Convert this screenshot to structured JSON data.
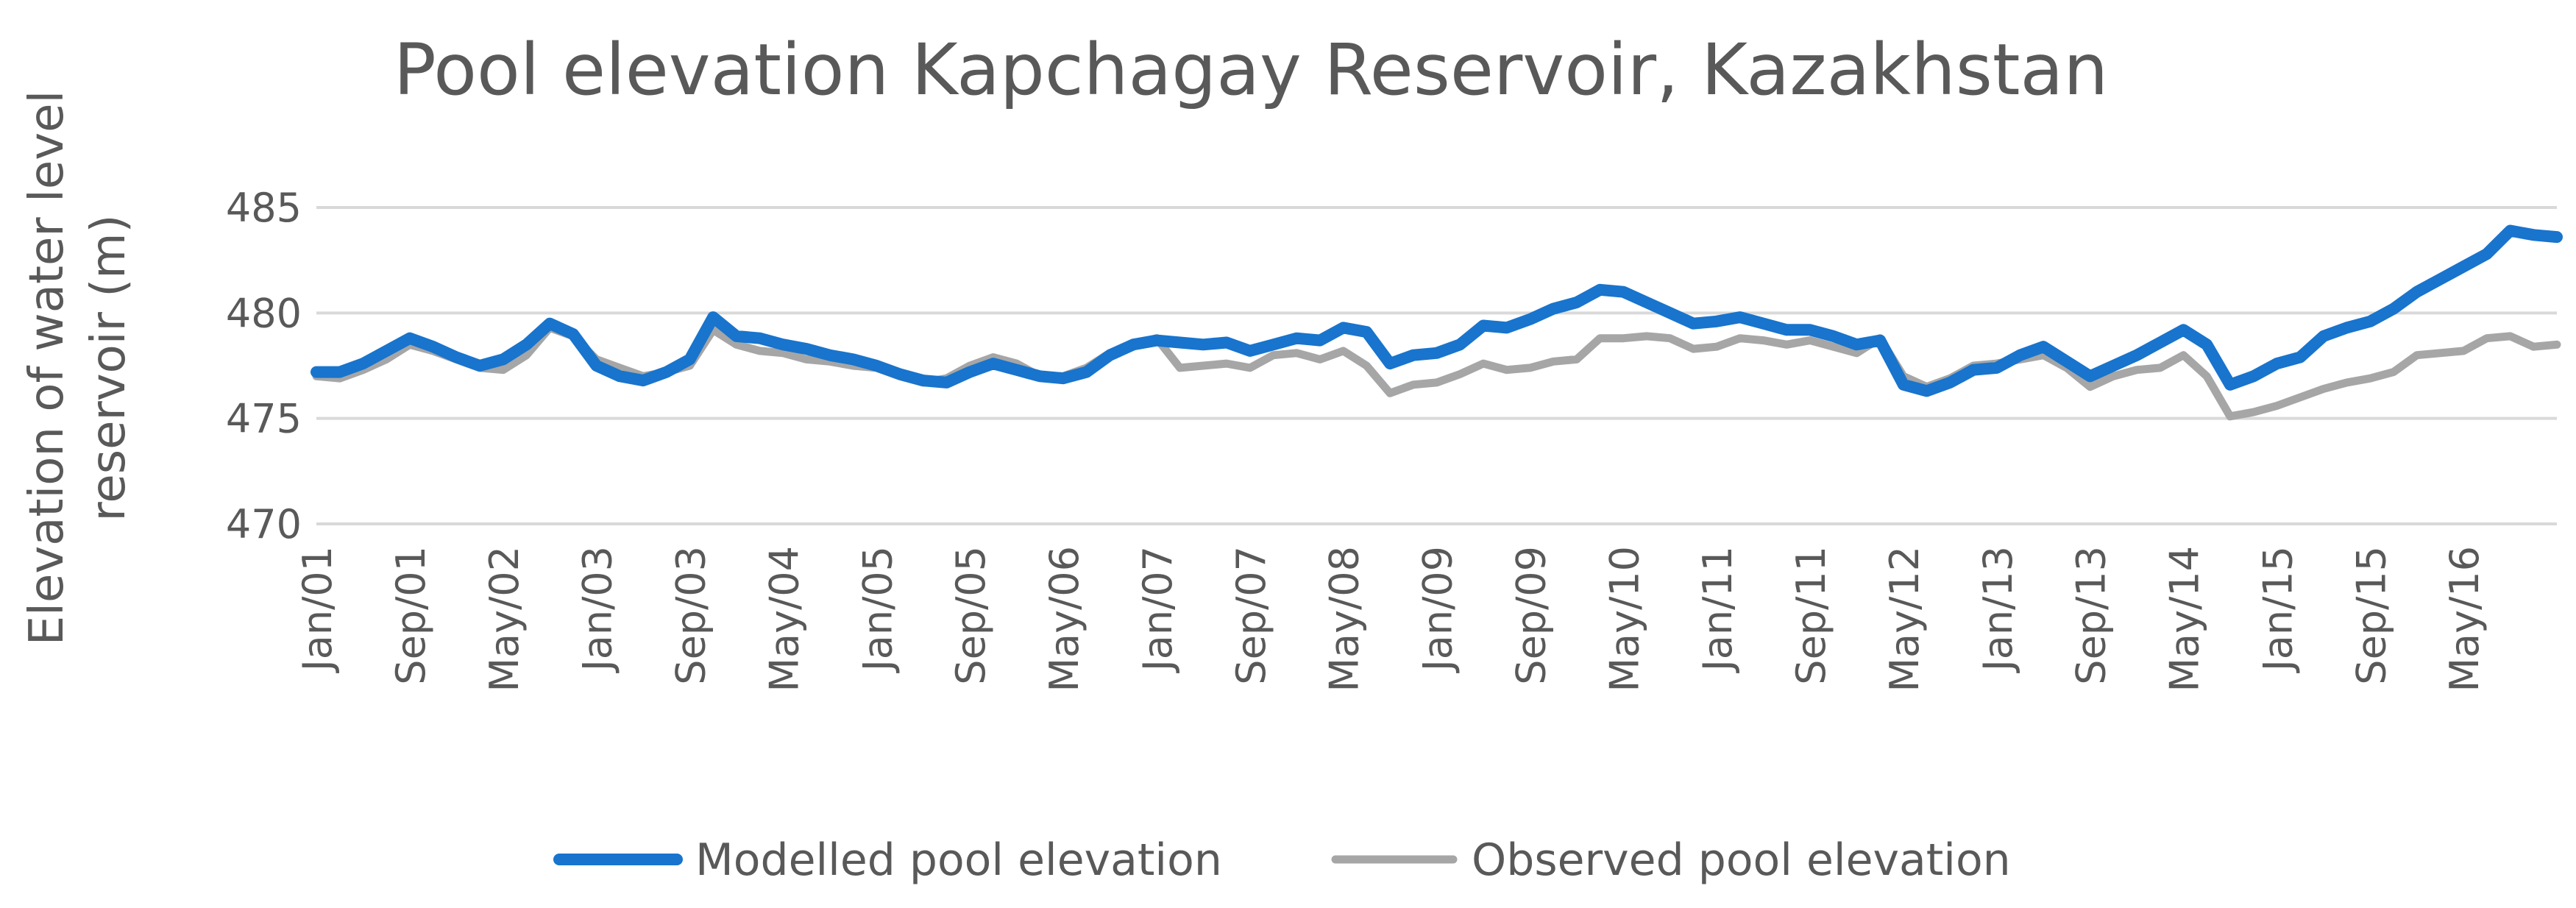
{
  "chart_data": {
    "type": "line",
    "title": "Pool elevation Kapchagay Reservoir, Kazakhstan",
    "ylabel_lines": [
      "Elevation of water level",
      "reservoir (m)"
    ],
    "xlabel": "",
    "ylim": [
      470,
      485
    ],
    "yticks": [
      470,
      475,
      480,
      485
    ],
    "gridlines": true,
    "legend_position": "bottom",
    "x_start": "Jan/01",
    "x_end": "Dec/16",
    "x_tick_labels": [
      {
        "label": "Jan/01",
        "month_index": 0
      },
      {
        "label": "Sep/01",
        "month_index": 8
      },
      {
        "label": "May/02",
        "month_index": 16
      },
      {
        "label": "Jan/03",
        "month_index": 24
      },
      {
        "label": "Sep/03",
        "month_index": 32
      },
      {
        "label": "May/04",
        "month_index": 40
      },
      {
        "label": "Jan/05",
        "month_index": 48
      },
      {
        "label": "Sep/05",
        "month_index": 56
      },
      {
        "label": "May/06",
        "month_index": 64
      },
      {
        "label": "Jan/07",
        "month_index": 72
      },
      {
        "label": "Sep/07",
        "month_index": 80
      },
      {
        "label": "May/08",
        "month_index": 88
      },
      {
        "label": "Jan/09",
        "month_index": 96
      },
      {
        "label": "Sep/09",
        "month_index": 104
      },
      {
        "label": "May/10",
        "month_index": 112
      },
      {
        "label": "Jan/11",
        "month_index": 120
      },
      {
        "label": "Sep/11",
        "month_index": 128
      },
      {
        "label": "May/12",
        "month_index": 136
      },
      {
        "label": "Jan/13",
        "month_index": 144
      },
      {
        "label": "Sep/13",
        "month_index": 152
      },
      {
        "label": "May/14",
        "month_index": 160
      },
      {
        "label": "Jan/15",
        "month_index": 168
      },
      {
        "label": "Sep/15",
        "month_index": 176
      },
      {
        "label": "May/16",
        "month_index": 184
      }
    ],
    "x_count": 192,
    "series": [
      {
        "name": "Modelled pool elevation",
        "color": "#1874cd",
        "points": [
          [
            0,
            477.2
          ],
          [
            2,
            477.2
          ],
          [
            4,
            477.6
          ],
          [
            6,
            478.2
          ],
          [
            8,
            478.8
          ],
          [
            10,
            478.4
          ],
          [
            12,
            477.9
          ],
          [
            14,
            477.5
          ],
          [
            16,
            477.8
          ],
          [
            18,
            478.5
          ],
          [
            20,
            479.5
          ],
          [
            22,
            479.0
          ],
          [
            24,
            477.5
          ],
          [
            26,
            477.0
          ],
          [
            28,
            476.8
          ],
          [
            30,
            477.2
          ],
          [
            32,
            477.8
          ],
          [
            34,
            479.8
          ],
          [
            36,
            478.9
          ],
          [
            38,
            478.8
          ],
          [
            40,
            478.5
          ],
          [
            42,
            478.3
          ],
          [
            44,
            478.0
          ],
          [
            46,
            477.8
          ],
          [
            48,
            477.5
          ],
          [
            50,
            477.1
          ],
          [
            52,
            476.8
          ],
          [
            54,
            476.7
          ],
          [
            56,
            477.2
          ],
          [
            58,
            477.6
          ],
          [
            60,
            477.3
          ],
          [
            62,
            477.0
          ],
          [
            64,
            476.9
          ],
          [
            66,
            477.2
          ],
          [
            68,
            478.0
          ],
          [
            70,
            478.5
          ],
          [
            72,
            478.7
          ],
          [
            74,
            478.6
          ],
          [
            76,
            478.5
          ],
          [
            78,
            478.6
          ],
          [
            80,
            478.2
          ],
          [
            82,
            478.5
          ],
          [
            84,
            478.8
          ],
          [
            86,
            478.7
          ],
          [
            88,
            479.3
          ],
          [
            90,
            479.1
          ],
          [
            92,
            477.6
          ],
          [
            94,
            478.0
          ],
          [
            96,
            478.1
          ],
          [
            98,
            478.5
          ],
          [
            100,
            479.4
          ],
          [
            102,
            479.3
          ],
          [
            104,
            479.7
          ],
          [
            106,
            480.2
          ],
          [
            108,
            480.5
          ],
          [
            110,
            481.1
          ],
          [
            112,
            481.0
          ],
          [
            114,
            480.5
          ],
          [
            116,
            480.0
          ],
          [
            118,
            479.5
          ],
          [
            120,
            479.6
          ],
          [
            122,
            479.8
          ],
          [
            124,
            479.5
          ],
          [
            126,
            479.2
          ],
          [
            128,
            479.2
          ],
          [
            130,
            478.9
          ],
          [
            132,
            478.5
          ],
          [
            134,
            478.7
          ],
          [
            136,
            476.6
          ],
          [
            138,
            476.3
          ],
          [
            140,
            476.7
          ],
          [
            142,
            477.3
          ],
          [
            144,
            477.4
          ],
          [
            146,
            478.0
          ],
          [
            148,
            478.4
          ],
          [
            150,
            477.7
          ],
          [
            152,
            477.0
          ],
          [
            154,
            477.5
          ],
          [
            156,
            478.0
          ],
          [
            158,
            478.6
          ],
          [
            160,
            479.2
          ],
          [
            162,
            478.5
          ],
          [
            164,
            476.6
          ],
          [
            166,
            477.0
          ],
          [
            168,
            477.6
          ],
          [
            170,
            477.9
          ],
          [
            172,
            478.9
          ],
          [
            174,
            479.3
          ],
          [
            176,
            479.6
          ],
          [
            178,
            480.2
          ],
          [
            180,
            481.0
          ],
          [
            182,
            481.6
          ],
          [
            184,
            482.2
          ],
          [
            186,
            482.8
          ],
          [
            188,
            483.9
          ],
          [
            190,
            483.7
          ],
          [
            192,
            483.6
          ]
        ]
      },
      {
        "name": "Observed pool elevation",
        "color": "#a6a6a6",
        "points": [
          [
            0,
            477.0
          ],
          [
            2,
            476.9
          ],
          [
            4,
            477.3
          ],
          [
            6,
            477.8
          ],
          [
            8,
            478.5
          ],
          [
            10,
            478.2
          ],
          [
            12,
            477.8
          ],
          [
            14,
            477.4
          ],
          [
            16,
            477.3
          ],
          [
            18,
            478.0
          ],
          [
            20,
            479.3
          ],
          [
            22,
            478.9
          ],
          [
            24,
            477.8
          ],
          [
            26,
            477.4
          ],
          [
            28,
            477.0
          ],
          [
            30,
            477.2
          ],
          [
            32,
            477.5
          ],
          [
            34,
            479.2
          ],
          [
            36,
            478.5
          ],
          [
            38,
            478.2
          ],
          [
            40,
            478.1
          ],
          [
            42,
            477.8
          ],
          [
            44,
            477.7
          ],
          [
            46,
            477.5
          ],
          [
            48,
            477.4
          ],
          [
            50,
            477.0
          ],
          [
            52,
            476.7
          ],
          [
            54,
            476.9
          ],
          [
            56,
            477.5
          ],
          [
            58,
            477.9
          ],
          [
            60,
            477.6
          ],
          [
            62,
            477.0
          ],
          [
            64,
            477.0
          ],
          [
            66,
            477.4
          ],
          [
            68,
            478.1
          ],
          [
            70,
            478.5
          ],
          [
            72,
            478.8
          ],
          [
            74,
            477.4
          ],
          [
            76,
            477.5
          ],
          [
            78,
            477.6
          ],
          [
            80,
            477.4
          ],
          [
            82,
            478.0
          ],
          [
            84,
            478.1
          ],
          [
            86,
            477.8
          ],
          [
            88,
            478.2
          ],
          [
            90,
            477.5
          ],
          [
            92,
            476.2
          ],
          [
            94,
            476.6
          ],
          [
            96,
            476.7
          ],
          [
            98,
            477.1
          ],
          [
            100,
            477.6
          ],
          [
            102,
            477.3
          ],
          [
            104,
            477.4
          ],
          [
            106,
            477.7
          ],
          [
            108,
            477.8
          ],
          [
            110,
            478.8
          ],
          [
            112,
            478.8
          ],
          [
            114,
            478.9
          ],
          [
            116,
            478.8
          ],
          [
            118,
            478.3
          ],
          [
            120,
            478.4
          ],
          [
            122,
            478.8
          ],
          [
            124,
            478.7
          ],
          [
            126,
            478.5
          ],
          [
            128,
            478.7
          ],
          [
            130,
            478.4
          ],
          [
            132,
            478.1
          ],
          [
            134,
            478.8
          ],
          [
            136,
            477.0
          ],
          [
            138,
            476.5
          ],
          [
            140,
            476.9
          ],
          [
            142,
            477.5
          ],
          [
            144,
            477.6
          ],
          [
            146,
            477.8
          ],
          [
            148,
            478.0
          ],
          [
            150,
            477.4
          ],
          [
            152,
            476.5
          ],
          [
            154,
            477.0
          ],
          [
            156,
            477.3
          ],
          [
            158,
            477.4
          ],
          [
            160,
            478.0
          ],
          [
            162,
            477.0
          ],
          [
            164,
            475.1
          ],
          [
            166,
            475.3
          ],
          [
            168,
            475.6
          ],
          [
            170,
            476.0
          ],
          [
            172,
            476.4
          ],
          [
            174,
            476.7
          ],
          [
            176,
            476.9
          ],
          [
            178,
            477.2
          ],
          [
            180,
            478.0
          ],
          [
            182,
            478.1
          ],
          [
            184,
            478.2
          ],
          [
            186,
            478.8
          ],
          [
            188,
            478.9
          ],
          [
            190,
            478.4
          ],
          [
            192,
            478.5
          ]
        ]
      }
    ]
  }
}
